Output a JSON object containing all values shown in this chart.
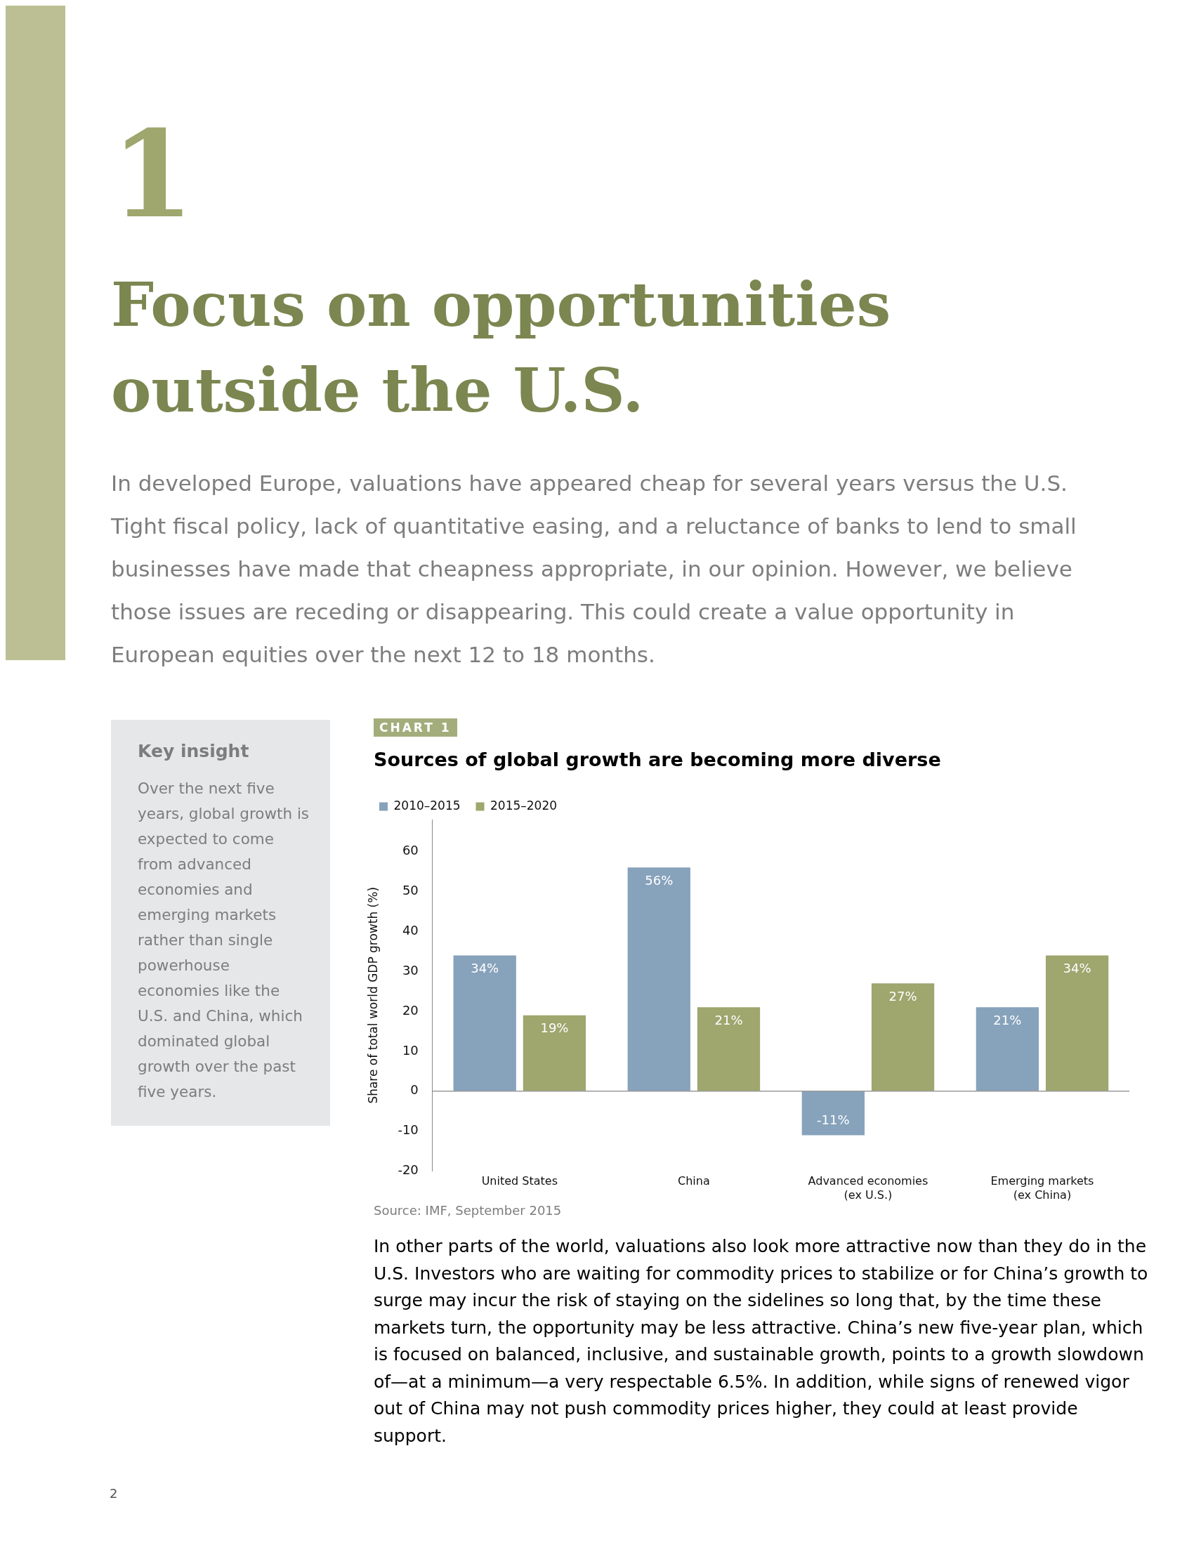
{
  "chart_data": {
    "type": "bar",
    "title": "Sources of global growth are becoming more diverse",
    "ylabel": "Share of total world GDP growth (%)",
    "categories": [
      "United States",
      "China",
      "Advanced economies (ex U.S.)",
      "Emerging markets (ex China)"
    ],
    "series": [
      {
        "name": "2010–2015",
        "color": "#87a2bb",
        "values": [
          34,
          56,
          -11,
          21
        ],
        "value_labels": [
          "34%",
          "56%",
          "-11%",
          "21%"
        ]
      },
      {
        "name": "2015–2020",
        "color": "#9fa66e",
        "values": [
          19,
          21,
          27,
          34
        ],
        "value_labels": [
          "19%",
          "21%",
          "27%",
          "34%"
        ]
      }
    ],
    "ylim": [
      -20,
      68
    ],
    "yticks": [
      -20,
      -10,
      0,
      10,
      20,
      30,
      40,
      50,
      60
    ],
    "grid": false,
    "legend": "top left",
    "ref_lines": [
      {
        "axis": "y",
        "value": 0,
        "color": "#9a9a9a"
      }
    ],
    "annotations": [
      "1",
      "Focus on opportunities outside the U.S.",
      "In developed Europe, valuations have appeared cheap for several years versus the U.S. Tight fiscal policy, lack of quantitative easing, and a reluctance of banks to lend to small businesses have made that cheapness appropriate, in our opinion. However, we believe those issues are receding or disappearing. This could create a value opportunity in European equities over the next 12 to 18 months.",
      "Key insight",
      "Over the next five years, global growth is expected to come from advanced economies and emerging markets rather than single powerhouse economies like the U.S. and China, which dominated global growth over the past five years.",
      "CHART 1",
      "Source: IMF, September 2015",
      "In other parts of the world, valuations also look more attractive now than they do in the U.S. Investors who are waiting for commodity prices to stabilize or for China’s growth to surge may incur the risk of staying on the sidelines so long that, by the time these markets turn, the opportunity may be less attractive. China’s new five-year plan, which is focused on balanced, inclusive, and sustainable growth, points to a growth slowdown of—at a minimum—a very respectable 6.5%. In addition, while signs of renewed vigor out of China may not push commodity prices higher, they could at least provide support.",
      "2"
    ]
  }
}
